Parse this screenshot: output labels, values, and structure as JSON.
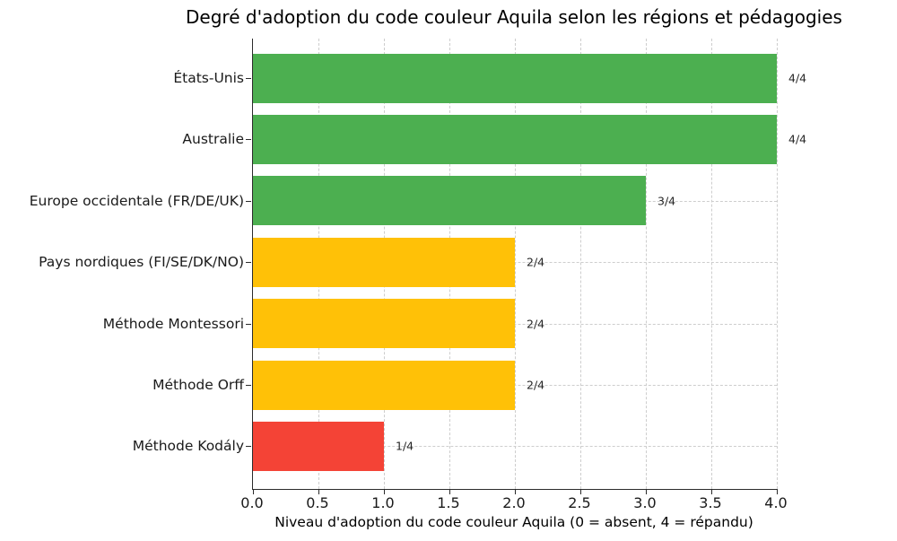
{
  "chart_data": {
    "type": "bar",
    "orientation": "horizontal",
    "title": "Degré d'adoption du code couleur Aquila selon les régions et pédagogies",
    "xlabel": "Niveau d'adoption du code couleur Aquila (0 = absent, 4 = répandu)",
    "ylabel": "",
    "categories": [
      "États-Unis",
      "Australie",
      "Europe occidentale (FR/DE/UK)",
      "Pays nordiques (FI/SE/DK/NO)",
      "Méthode Montessori",
      "Méthode Orff",
      "Méthode Kodály"
    ],
    "values": [
      4,
      4,
      3,
      2,
      2,
      2,
      1
    ],
    "value_labels": [
      "4/4",
      "4/4",
      "3/4",
      "2/4",
      "2/4",
      "2/4",
      "1/4"
    ],
    "bar_colors": [
      "#4caf50",
      "#4caf50",
      "#4caf50",
      "#ffc107",
      "#ffc107",
      "#ffc107",
      "#f44336"
    ],
    "xlim": [
      0,
      4
    ],
    "xticks": [
      0.0,
      0.5,
      1.0,
      1.5,
      2.0,
      2.5,
      3.0,
      3.5,
      4.0
    ],
    "xtick_labels": [
      "0.0",
      "0.5",
      "1.0",
      "1.5",
      "2.0",
      "2.5",
      "3.0",
      "3.5",
      "4.0"
    ],
    "grid": true,
    "grid_style": "dashed",
    "legend": null,
    "colors": {
      "adopted_full": "#4caf50",
      "adopted_partial": "#ffc107",
      "adopted_low": "#f44336",
      "grid": "#cdcdcd",
      "axis": "#2b2b2b",
      "text": "#1a1a1a"
    }
  }
}
